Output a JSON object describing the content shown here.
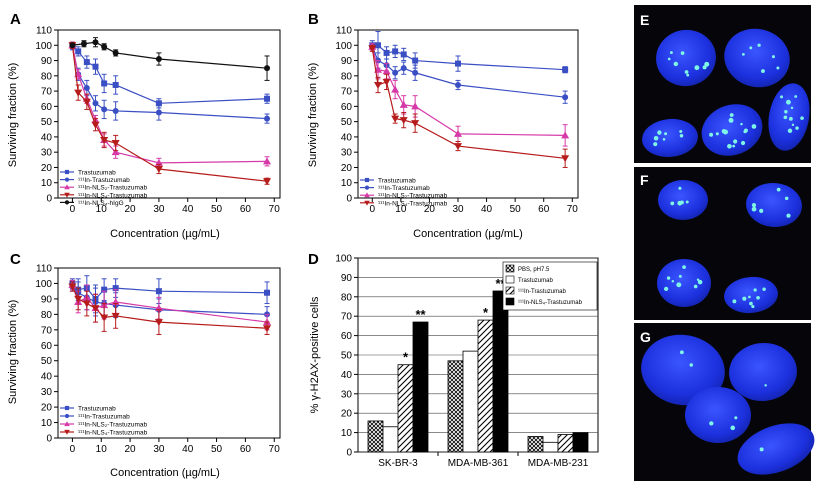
{
  "chart_data": [
    {
      "panel": "A",
      "type": "line",
      "xlabel": "Concentration (µg/mL)",
      "ylabel": "Surviving fraction (%)",
      "xlim": [
        -5,
        72
      ],
      "ylim": [
        0,
        110
      ],
      "xticks": [
        0,
        10,
        20,
        30,
        40,
        50,
        60,
        70
      ],
      "yticks": [
        0,
        10,
        20,
        30,
        40,
        50,
        60,
        70,
        80,
        90,
        100,
        110
      ],
      "series": [
        {
          "name": "Trastuzumab",
          "color": "#3b4fc4",
          "marker": "square",
          "x": [
            0,
            2,
            5,
            8,
            11,
            15,
            30,
            67.5
          ],
          "y": [
            100,
            96,
            89,
            86,
            75,
            74,
            62,
            65
          ],
          "err": [
            2,
            3,
            4,
            5,
            6,
            6,
            3,
            3
          ]
        },
        {
          "name": "111In-Trastuzumab",
          "color": "#3b4fc4",
          "marker": "circle",
          "x": [
            0,
            2,
            5,
            8,
            11,
            15,
            30,
            67.5
          ],
          "y": [
            99,
            81,
            72,
            62,
            58,
            57,
            56,
            52
          ],
          "err": [
            2,
            4,
            5,
            5,
            6,
            6,
            5,
            3
          ]
        },
        {
          "name": "111In-NLS2-Trastuzumab",
          "color": "#d63aa8",
          "marker": "triangle-up",
          "x": [
            0,
            2,
            5,
            8,
            11,
            15,
            30,
            67.5
          ],
          "y": [
            100,
            81,
            65,
            51,
            38,
            30,
            23,
            24
          ],
          "err": [
            2,
            3,
            3,
            3,
            4,
            4,
            3,
            3
          ]
        },
        {
          "name": "111In-NLS4-Trastuzumab",
          "color": "#b71c1c",
          "marker": "triangle-down",
          "x": [
            0,
            2,
            5,
            8,
            11,
            15,
            30,
            67.5
          ],
          "y": [
            100,
            69,
            63,
            48,
            38,
            36,
            19,
            11
          ],
          "err": [
            2,
            5,
            5,
            4,
            5,
            5,
            3,
            2
          ]
        },
        {
          "name": "111In-NLS4-hIgG",
          "color": "#111111",
          "marker": "circle",
          "x": [
            0,
            4,
            8,
            11,
            15,
            30,
            67.5
          ],
          "y": [
            100,
            101,
            102,
            99,
            95,
            91,
            85
          ],
          "err": [
            1,
            2,
            3,
            2,
            2,
            4,
            8
          ]
        }
      ],
      "legend": [
        "Trastuzumab",
        "¹¹¹In-Trastuzumab",
        "¹¹¹In-NLS₂-Trastuzumab",
        "¹¹¹In-NLS₄-Trastuzumab",
        "¹¹¹In-NLS₄-hIgG"
      ]
    },
    {
      "panel": "B",
      "type": "line",
      "xlabel": "Concentration (µg/mL)",
      "ylabel": "Surviving fraction (%)",
      "xlim": [
        -5,
        72
      ],
      "ylim": [
        0,
        110
      ],
      "xticks": [
        0,
        10,
        20,
        30,
        40,
        50,
        60,
        70
      ],
      "yticks": [
        0,
        10,
        20,
        30,
        40,
        50,
        60,
        70,
        80,
        90,
        100,
        110
      ],
      "series": [
        {
          "name": "Trastuzumab",
          "color": "#3b4fc4",
          "marker": "square",
          "x": [
            0,
            2,
            5,
            8,
            11,
            15,
            30,
            67.5
          ],
          "y": [
            100,
            100,
            95,
            96,
            94,
            90,
            88,
            84
          ],
          "err": [
            3,
            9,
            4,
            4,
            4,
            5,
            5,
            2
          ]
        },
        {
          "name": "111In-Trastuzumab",
          "color": "#3b4fc4",
          "marker": "circle",
          "x": [
            0,
            2,
            5,
            8,
            11,
            15,
            30,
            67.5
          ],
          "y": [
            99,
            90,
            87,
            82,
            85,
            82,
            74,
            66
          ],
          "err": [
            2,
            5,
            4,
            4,
            4,
            5,
            3,
            4
          ]
        },
        {
          "name": "111In-NLS2-Trastuzumab",
          "color": "#d63aa8",
          "marker": "triangle-up",
          "x": [
            0,
            2,
            5,
            8,
            11,
            15,
            30,
            67.5
          ],
          "y": [
            99,
            84,
            83,
            71,
            61,
            60,
            42,
            41
          ],
          "err": [
            2,
            6,
            5,
            6,
            6,
            7,
            5,
            7
          ]
        },
        {
          "name": "111In-NLS4-Trastuzumab",
          "color": "#b71c1c",
          "marker": "triangle-down",
          "x": [
            0,
            2,
            5,
            8,
            11,
            15,
            30,
            67.5
          ],
          "y": [
            98,
            74,
            76,
            52,
            51,
            49,
            34,
            26
          ],
          "err": [
            2,
            5,
            5,
            3,
            5,
            6,
            3,
            6
          ]
        }
      ],
      "legend": [
        "Trastuzumab",
        "¹¹¹In-Trastuzumab",
        "¹¹¹In-NLS₂-Trastuzumab",
        "¹¹¹In-NLS₄-Trastuzumab"
      ]
    },
    {
      "panel": "C",
      "type": "line",
      "xlabel": "Concentration (µg/mL)",
      "ylabel": "Surviving fraction (%)",
      "xlim": [
        -5,
        72
      ],
      "ylim": [
        0,
        110
      ],
      "xticks": [
        0,
        10,
        20,
        30,
        40,
        50,
        60,
        70
      ],
      "yticks": [
        0,
        10,
        20,
        30,
        40,
        50,
        60,
        70,
        80,
        90,
        100,
        110
      ],
      "series": [
        {
          "name": "Trastuzumab",
          "color": "#3b4fc4",
          "marker": "square",
          "x": [
            0,
            2,
            5,
            8,
            11,
            15,
            30,
            67.5
          ],
          "y": [
            100,
            96,
            97,
            90,
            96,
            97,
            95,
            94
          ],
          "err": [
            3,
            7,
            8,
            9,
            7,
            6,
            8,
            7
          ]
        },
        {
          "name": "111In-Trastuzumab",
          "color": "#3b4fc4",
          "marker": "circle",
          "x": [
            0,
            2,
            5,
            8,
            11,
            15,
            30,
            67.5
          ],
          "y": [
            98,
            94,
            91,
            88,
            87,
            86,
            83,
            80
          ],
          "err": [
            3,
            7,
            8,
            9,
            9,
            8,
            7,
            5
          ]
        },
        {
          "name": "111In-NLS2-Trastuzumab",
          "color": "#d63aa8",
          "marker": "triangle-up",
          "x": [
            0,
            2,
            5,
            8,
            11,
            15,
            30,
            67.5
          ],
          "y": [
            99,
            88,
            91,
            84,
            86,
            88,
            84,
            75
          ],
          "err": [
            3,
            7,
            8,
            9,
            9,
            8,
            7,
            5
          ]
        },
        {
          "name": "111In-NLS4-Trastuzumab",
          "color": "#b71c1c",
          "marker": "triangle-down",
          "x": [
            0,
            2,
            5,
            8,
            11,
            15,
            30,
            67.5
          ],
          "y": [
            98,
            90,
            87,
            84,
            78,
            79,
            75,
            71
          ],
          "err": [
            3,
            7,
            8,
            9,
            9,
            8,
            8,
            4
          ]
        }
      ],
      "legend": [
        "Trastuzumab",
        "¹¹¹In-Trastuzumab",
        "¹¹¹In-NLS₂-Trastuzumab",
        "¹¹¹In-NLS₄-Trastuzumab"
      ]
    },
    {
      "panel": "D",
      "type": "bar",
      "ylabel": "% γ-H2AX-positive cells",
      "ylim": [
        0,
        100
      ],
      "yticks": [
        0,
        10,
        20,
        30,
        40,
        50,
        60,
        70,
        80,
        90,
        100
      ],
      "categories": [
        "SK-BR-3",
        "MDA-MB-361",
        "MDA-MB-231"
      ],
      "series": [
        {
          "name": "PBS, pH7.5",
          "pattern": "crosshatch",
          "values": [
            16,
            47,
            8
          ]
        },
        {
          "name": "Trastuzumab",
          "pattern": "white",
          "values": [
            13,
            52,
            5
          ]
        },
        {
          "name": "111In-Trastuzumab",
          "pattern": "diagonal",
          "values": [
            45,
            68,
            9
          ]
        },
        {
          "name": "111In-NLS4-Trastuzumab",
          "pattern": "black",
          "values": [
            67,
            83,
            10
          ]
        }
      ],
      "legend": [
        "PBS, pH7.5",
        "Trastuzumab",
        "¹¹¹In-Trastuzumab",
        "¹¹¹In-NLS₄-Trastuzumab"
      ],
      "annotations": [
        {
          "category": "SK-BR-3",
          "series": 2,
          "text": "*"
        },
        {
          "category": "SK-BR-3",
          "series": 3,
          "text": "**"
        },
        {
          "category": "MDA-MB-361",
          "series": 2,
          "text": "*"
        },
        {
          "category": "MDA-MB-361",
          "series": 3,
          "text": "**"
        }
      ]
    }
  ],
  "micrographs": [
    {
      "label": "E",
      "bg": "#06060a",
      "nucleus": "#2236e6",
      "foci": "#7ff5e6"
    },
    {
      "label": "F",
      "bg": "#06060a",
      "nucleus": "#2236e6",
      "foci": "#7ff5e6"
    },
    {
      "label": "G",
      "bg": "#06060a",
      "nucleus": "#2236e6",
      "foci": "#7ff5e6"
    }
  ]
}
